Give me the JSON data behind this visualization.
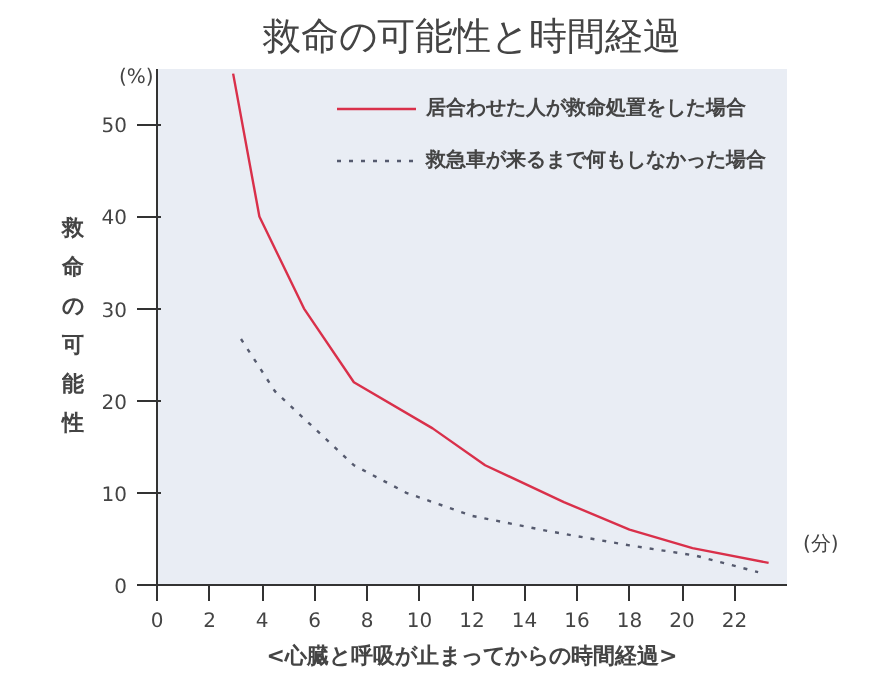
{
  "chart_data": {
    "type": "line",
    "title": "救命の可能性と時間経過",
    "xlabel": "<心臓と呼吸が止まってからの時間経過>",
    "ylabel": "救命の可能性",
    "annotations": [
      "(%)",
      "(分)"
    ],
    "xlim": [
      0,
      24
    ],
    "xticks": [
      0,
      2,
      4,
      6,
      8,
      10,
      12,
      14,
      16,
      18,
      20,
      22
    ],
    "ylim": [
      0,
      56
    ],
    "yticks": [
      0,
      10,
      20,
      30,
      40,
      50
    ],
    "grid": false,
    "legend": "top right",
    "marker": "none",
    "series": [
      {
        "name": "居合わせた人が救命処置をした場合",
        "color": "#d9304a",
        "line_style": "solid",
        "x": [
          2.9,
          3.9,
          5.6,
          7.5,
          10.5,
          12.5,
          15.5,
          18,
          20.4,
          23.3
        ],
        "values": [
          55.5,
          40,
          30,
          22,
          17,
          13,
          9,
          6,
          4,
          2.4
        ]
      },
      {
        "name": "救急車が来るまで何もしなかった場合",
        "color": "#555a6e",
        "line_style": "dotted",
        "x": [
          3.2,
          4.5,
          6,
          7.5,
          9.5,
          12,
          15,
          18,
          20.5,
          22.9
        ],
        "values": [
          26.7,
          21,
          17,
          13,
          10,
          7.5,
          5.8,
          4.3,
          3.2,
          1.4
        ]
      }
    ]
  }
}
